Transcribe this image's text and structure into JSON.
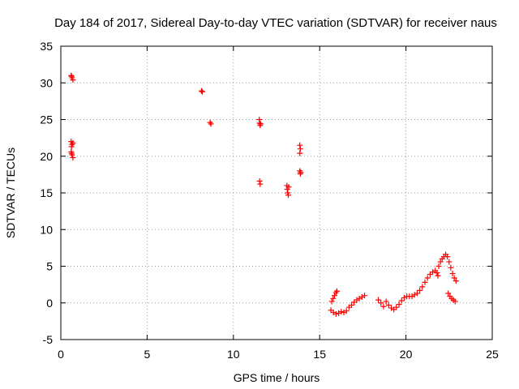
{
  "chart_data": {
    "type": "scatter",
    "title": "Day 184 of 2017, Sidereal Day-to-day VTEC variation (SDTVAR) for receiver naus",
    "xlabel": "GPS time / hours",
    "ylabel": "SDTVAR / TECUs",
    "xlim": [
      0,
      25
    ],
    "ylim": [
      -5,
      35
    ],
    "xticks": [
      0,
      5,
      10,
      15,
      20,
      25
    ],
    "yticks": [
      -5,
      0,
      5,
      10,
      15,
      20,
      25,
      30,
      35
    ],
    "grid": true,
    "marker": "+",
    "color": "#ff0000",
    "series": [
      {
        "name": "naus",
        "points": [
          [
            0.6,
            31.0
          ],
          [
            0.65,
            30.7
          ],
          [
            0.7,
            30.4
          ],
          [
            0.62,
            30.9
          ],
          [
            0.6,
            22.0
          ],
          [
            0.65,
            21.6
          ],
          [
            0.7,
            21.8
          ],
          [
            0.62,
            21.3
          ],
          [
            0.6,
            20.6
          ],
          [
            0.65,
            20.2
          ],
          [
            0.7,
            19.8
          ],
          [
            0.62,
            20.4
          ],
          [
            8.15,
            28.9
          ],
          [
            8.2,
            28.8
          ],
          [
            8.65,
            24.6
          ],
          [
            8.7,
            24.4
          ],
          [
            11.5,
            25.0
          ],
          [
            11.52,
            24.5
          ],
          [
            11.55,
            24.2
          ],
          [
            11.58,
            24.4
          ],
          [
            11.52,
            16.6
          ],
          [
            11.55,
            16.2
          ],
          [
            13.1,
            16.0
          ],
          [
            13.12,
            15.5
          ],
          [
            13.15,
            15.0
          ],
          [
            13.18,
            14.7
          ],
          [
            13.2,
            15.8
          ],
          [
            13.85,
            21.5
          ],
          [
            13.88,
            21.0
          ],
          [
            13.85,
            20.4
          ],
          [
            13.85,
            18.0
          ],
          [
            13.88,
            17.6
          ],
          [
            13.9,
            17.8
          ],
          [
            15.65,
            -1.0
          ],
          [
            15.8,
            -1.3
          ],
          [
            15.95,
            -1.5
          ],
          [
            16.1,
            -1.4
          ],
          [
            16.25,
            -1.2
          ],
          [
            16.4,
            -1.3
          ],
          [
            16.55,
            -1.1
          ],
          [
            16.7,
            -0.6
          ],
          [
            16.85,
            -0.3
          ],
          [
            17.0,
            0.1
          ],
          [
            17.15,
            0.4
          ],
          [
            17.3,
            0.6
          ],
          [
            17.45,
            0.8
          ],
          [
            17.6,
            1.0
          ],
          [
            15.7,
            0.2
          ],
          [
            15.78,
            0.6
          ],
          [
            15.86,
            1.0
          ],
          [
            15.94,
            1.4
          ],
          [
            16.0,
            1.6
          ],
          [
            18.4,
            0.4
          ],
          [
            18.55,
            0.0
          ],
          [
            18.7,
            -0.5
          ],
          [
            18.85,
            0.2
          ],
          [
            19.0,
            -0.3
          ],
          [
            19.15,
            -0.7
          ],
          [
            19.3,
            -0.9
          ],
          [
            19.45,
            -0.6
          ],
          [
            19.6,
            -0.2
          ],
          [
            19.75,
            0.3
          ],
          [
            19.9,
            0.7
          ],
          [
            20.05,
            0.9
          ],
          [
            20.2,
            0.9
          ],
          [
            20.35,
            0.9
          ],
          [
            20.5,
            1.1
          ],
          [
            20.65,
            1.3
          ],
          [
            20.8,
            1.7
          ],
          [
            20.95,
            2.2
          ],
          [
            21.1,
            2.8
          ],
          [
            21.25,
            3.4
          ],
          [
            21.4,
            3.9
          ],
          [
            21.55,
            4.2
          ],
          [
            21.7,
            4.4
          ],
          [
            21.8,
            4.1
          ],
          [
            21.85,
            3.7
          ],
          [
            21.9,
            5.0
          ],
          [
            22.0,
            5.6
          ],
          [
            22.1,
            6.0
          ],
          [
            22.2,
            6.3
          ],
          [
            22.3,
            6.6
          ],
          [
            22.4,
            6.3
          ],
          [
            22.5,
            5.6
          ],
          [
            22.6,
            4.8
          ],
          [
            22.7,
            4.0
          ],
          [
            22.8,
            3.4
          ],
          [
            22.9,
            3.0
          ],
          [
            22.45,
            1.3
          ],
          [
            22.55,
            0.9
          ],
          [
            22.65,
            0.6
          ],
          [
            22.75,
            0.4
          ],
          [
            22.85,
            0.2
          ]
        ]
      }
    ]
  }
}
